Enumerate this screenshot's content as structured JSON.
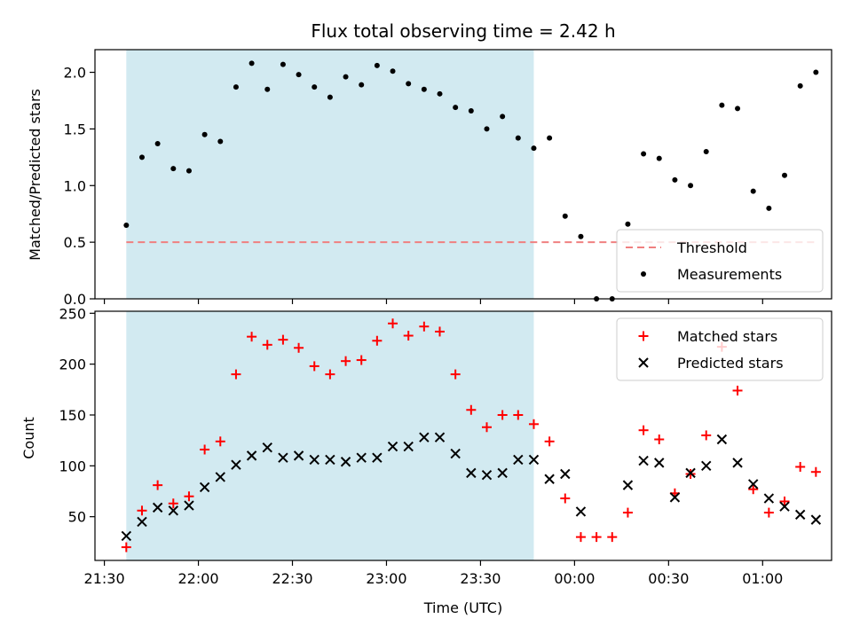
{
  "chart_data": [
    {
      "type": "scatter",
      "title": "Flux total observing time = 2.42 h",
      "xlabel": "",
      "ylabel": "Matched/Predicted stars",
      "ylim": [
        0,
        2.2
      ],
      "yticks": [
        "0.0",
        "0.5",
        "1.0",
        "1.5",
        "2.0"
      ],
      "shaded_region": {
        "from": "21:37",
        "to": "23:47",
        "color": "#add8e6"
      },
      "legend_position": "bottom-right",
      "series": [
        {
          "name": "Threshold",
          "style": "dashed-line",
          "color": "#f08080",
          "x": [
            "21:37",
            "01:17"
          ],
          "values": [
            0.5,
            0.5
          ]
        },
        {
          "name": "Measurements",
          "style": "dot",
          "color": "#000000",
          "x": [
            "21:37",
            "21:42",
            "21:47",
            "21:52",
            "21:57",
            "22:02",
            "22:07",
            "22:12",
            "22:17",
            "22:22",
            "22:27",
            "22:32",
            "22:37",
            "22:42",
            "22:47",
            "22:52",
            "22:57",
            "23:02",
            "23:07",
            "23:12",
            "23:17",
            "23:22",
            "23:27",
            "23:32",
            "23:37",
            "23:42",
            "23:47",
            "23:52",
            "23:57",
            "00:02",
            "00:07",
            "00:12",
            "00:17",
            "00:22",
            "00:27",
            "00:32",
            "00:37",
            "00:42",
            "00:47",
            "00:52",
            "00:57",
            "01:02",
            "01:07",
            "01:12",
            "01:17"
          ],
          "values": [
            0.65,
            1.25,
            1.37,
            1.15,
            1.13,
            1.45,
            1.39,
            1.87,
            2.08,
            1.85,
            2.07,
            1.98,
            1.87,
            1.78,
            1.96,
            1.89,
            2.06,
            2.01,
            1.9,
            1.85,
            1.81,
            1.69,
            1.66,
            1.5,
            1.61,
            1.42,
            1.33,
            1.42,
            0.73,
            0.55,
            0.0,
            0.0,
            0.66,
            1.28,
            1.24,
            1.05,
            1.0,
            1.3,
            1.71,
            1.68,
            0.95,
            0.8,
            1.09,
            1.88,
            2.0
          ]
        }
      ]
    },
    {
      "type": "scatter",
      "title": "",
      "xlabel": "Time (UTC)",
      "ylabel": "Count",
      "ylim": [
        7,
        252
      ],
      "yticks": [
        "50",
        "100",
        "150",
        "200",
        "250"
      ],
      "xticks": [
        "21:30",
        "22:00",
        "22:30",
        "23:00",
        "23:30",
        "00:00",
        "00:30",
        "01:00"
      ],
      "shaded_region": {
        "from": "21:37",
        "to": "23:47",
        "color": "#add8e6"
      },
      "legend_position": "top-right",
      "series": [
        {
          "name": "Matched stars",
          "style": "plus",
          "color": "#ff0000",
          "x": [
            "21:37",
            "21:42",
            "21:47",
            "21:52",
            "21:57",
            "22:02",
            "22:07",
            "22:12",
            "22:17",
            "22:22",
            "22:27",
            "22:32",
            "22:37",
            "22:42",
            "22:47",
            "22:52",
            "22:57",
            "23:02",
            "23:07",
            "23:12",
            "23:17",
            "23:22",
            "23:27",
            "23:32",
            "23:37",
            "23:42",
            "23:47",
            "23:52",
            "23:57",
            "00:02",
            "00:07",
            "00:12",
            "00:17",
            "00:22",
            "00:27",
            "00:32",
            "00:37",
            "00:42",
            "00:47",
            "00:52",
            "00:57",
            "01:02",
            "01:07",
            "01:12",
            "01:17"
          ],
          "values": [
            20,
            56,
            81,
            63,
            70,
            116,
            124,
            190,
            227,
            219,
            224,
            216,
            198,
            190,
            203,
            204,
            223,
            240,
            228,
            237,
            232,
            190,
            155,
            138,
            150,
            150,
            141,
            124,
            68,
            30,
            30,
            30,
            54,
            135,
            126,
            73,
            92,
            130,
            217,
            174,
            77,
            54,
            65,
            99,
            94
          ]
        },
        {
          "name": "Predicted stars",
          "style": "x",
          "color": "#000000",
          "x": [
            "21:37",
            "21:42",
            "21:47",
            "21:52",
            "21:57",
            "22:02",
            "22:07",
            "22:12",
            "22:17",
            "22:22",
            "22:27",
            "22:32",
            "22:37",
            "22:42",
            "22:47",
            "22:52",
            "22:57",
            "23:02",
            "23:07",
            "23:12",
            "23:17",
            "23:22",
            "23:27",
            "23:32",
            "23:37",
            "23:42",
            "23:47",
            "23:52",
            "23:57",
            "00:02",
            "00:07",
            "00:12",
            "00:17",
            "00:22",
            "00:27",
            "00:32",
            "00:37",
            "00:42",
            "00:47",
            "00:52",
            "00:57",
            "01:02",
            "01:07",
            "01:12",
            "01:17"
          ],
          "values": [
            31,
            45,
            59,
            56,
            61,
            79,
            89,
            101,
            110,
            118,
            108,
            110,
            106,
            106,
            104,
            108,
            108,
            119,
            119,
            128,
            128,
            112,
            93,
            91,
            93,
            106,
            106,
            87,
            92,
            55,
            null,
            null,
            81,
            105,
            103,
            69,
            93,
            100,
            126,
            103,
            82,
            68,
            60,
            52,
            47
          ]
        }
      ]
    }
  ]
}
